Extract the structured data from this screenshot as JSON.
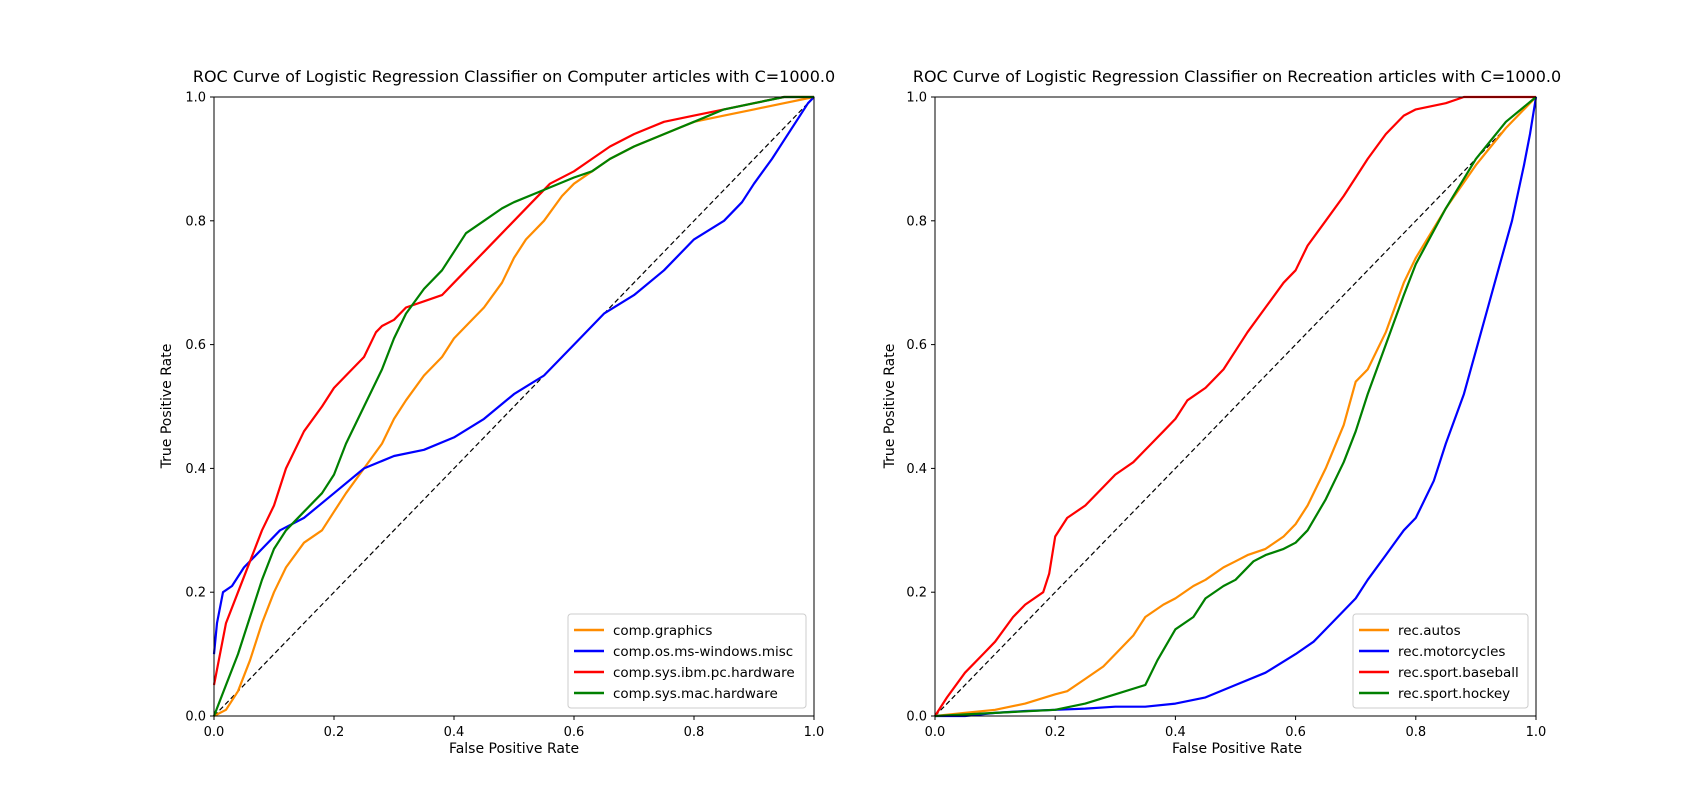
{
  "chart_data": [
    {
      "type": "line",
      "title": "ROC Curve of Logistic Regression Classifier on Computer articles with C=1000.0",
      "xlabel": "False Positive Rate",
      "ylabel": "True Positive Rate",
      "xlim": [
        0,
        1
      ],
      "ylim": [
        0,
        1
      ],
      "xticks": [
        "0.0",
        "0.2",
        "0.4",
        "0.6",
        "0.8",
        "1.0"
      ],
      "yticks": [
        "0.0",
        "0.2",
        "0.4",
        "0.6",
        "0.8",
        "1.0"
      ],
      "grid": false,
      "legend_position": "lower-right",
      "diagonal": {
        "style": "dashed",
        "color": "#000000",
        "x": [
          0,
          1
        ],
        "y": [
          0,
          1
        ]
      },
      "series": [
        {
          "name": "comp.graphics",
          "color": "#ff8c00",
          "x": [
            0,
            0.02,
            0.04,
            0.06,
            0.08,
            0.1,
            0.12,
            0.15,
            0.18,
            0.2,
            0.22,
            0.25,
            0.28,
            0.3,
            0.32,
            0.35,
            0.38,
            0.4,
            0.42,
            0.45,
            0.48,
            0.5,
            0.52,
            0.55,
            0.58,
            0.6,
            0.63,
            0.66,
            0.7,
            0.75,
            0.8,
            0.85,
            0.9,
            0.95,
            1.0
          ],
          "y": [
            0,
            0.01,
            0.04,
            0.09,
            0.15,
            0.2,
            0.24,
            0.28,
            0.3,
            0.33,
            0.36,
            0.4,
            0.44,
            0.48,
            0.51,
            0.55,
            0.58,
            0.61,
            0.63,
            0.66,
            0.7,
            0.74,
            0.77,
            0.8,
            0.84,
            0.86,
            0.88,
            0.9,
            0.92,
            0.94,
            0.96,
            0.97,
            0.98,
            0.99,
            1.0
          ]
        },
        {
          "name": "comp.os.ms-windows.misc",
          "color": "#0000ff",
          "x": [
            0,
            0.005,
            0.015,
            0.03,
            0.05,
            0.08,
            0.11,
            0.15,
            0.2,
            0.25,
            0.3,
            0.35,
            0.4,
            0.45,
            0.5,
            0.55,
            0.6,
            0.65,
            0.7,
            0.75,
            0.8,
            0.85,
            0.88,
            0.9,
            0.93,
            0.95,
            0.97,
            0.99,
            1.0
          ],
          "y": [
            0.1,
            0.15,
            0.2,
            0.21,
            0.24,
            0.27,
            0.3,
            0.32,
            0.36,
            0.4,
            0.42,
            0.43,
            0.45,
            0.48,
            0.52,
            0.55,
            0.6,
            0.65,
            0.68,
            0.72,
            0.77,
            0.8,
            0.83,
            0.86,
            0.9,
            0.93,
            0.96,
            0.99,
            1.0
          ]
        },
        {
          "name": "comp.sys.ibm.pc.hardware",
          "color": "#ff0000",
          "x": [
            0,
            0.01,
            0.02,
            0.04,
            0.06,
            0.08,
            0.1,
            0.12,
            0.15,
            0.18,
            0.2,
            0.22,
            0.25,
            0.27,
            0.28,
            0.3,
            0.32,
            0.35,
            0.38,
            0.4,
            0.42,
            0.45,
            0.48,
            0.5,
            0.53,
            0.56,
            0.6,
            0.63,
            0.66,
            0.7,
            0.75,
            0.8,
            0.85,
            0.9,
            0.95,
            1.0
          ],
          "y": [
            0.05,
            0.1,
            0.15,
            0.2,
            0.25,
            0.3,
            0.34,
            0.4,
            0.46,
            0.5,
            0.53,
            0.55,
            0.58,
            0.62,
            0.63,
            0.64,
            0.66,
            0.67,
            0.68,
            0.7,
            0.72,
            0.75,
            0.78,
            0.8,
            0.83,
            0.86,
            0.88,
            0.9,
            0.92,
            0.94,
            0.96,
            0.97,
            0.98,
            0.99,
            1.0,
            1.0
          ]
        },
        {
          "name": "comp.sys.mac.hardware",
          "color": "#008000",
          "x": [
            0,
            0.02,
            0.04,
            0.06,
            0.08,
            0.1,
            0.12,
            0.15,
            0.18,
            0.2,
            0.22,
            0.25,
            0.28,
            0.3,
            0.32,
            0.35,
            0.38,
            0.4,
            0.42,
            0.45,
            0.48,
            0.5,
            0.55,
            0.6,
            0.63,
            0.66,
            0.7,
            0.75,
            0.8,
            0.85,
            0.9,
            0.95,
            1.0
          ],
          "y": [
            0,
            0.05,
            0.1,
            0.16,
            0.22,
            0.27,
            0.3,
            0.33,
            0.36,
            0.39,
            0.44,
            0.5,
            0.56,
            0.61,
            0.65,
            0.69,
            0.72,
            0.75,
            0.78,
            0.8,
            0.82,
            0.83,
            0.85,
            0.87,
            0.88,
            0.9,
            0.92,
            0.94,
            0.96,
            0.98,
            0.99,
            1.0,
            1.0
          ]
        }
      ]
    },
    {
      "type": "line",
      "title": "ROC Curve of Logistic Regression Classifier on Recreation articles with C=1000.0",
      "xlabel": "False Positive Rate",
      "ylabel": "True Positive Rate",
      "xlim": [
        0,
        1
      ],
      "ylim": [
        0,
        1
      ],
      "xticks": [
        "0.0",
        "0.2",
        "0.4",
        "0.6",
        "0.8",
        "1.0"
      ],
      "yticks": [
        "0.0",
        "0.2",
        "0.4",
        "0.6",
        "0.8",
        "1.0"
      ],
      "grid": false,
      "legend_position": "lower-right",
      "diagonal": {
        "style": "dashed",
        "color": "#000000",
        "x": [
          0,
          1
        ],
        "y": [
          0,
          1
        ]
      },
      "series": [
        {
          "name": "rec.autos",
          "color": "#ff8c00",
          "x": [
            0,
            0.05,
            0.1,
            0.15,
            0.2,
            0.22,
            0.25,
            0.28,
            0.3,
            0.33,
            0.35,
            0.38,
            0.4,
            0.43,
            0.45,
            0.48,
            0.5,
            0.52,
            0.55,
            0.58,
            0.6,
            0.62,
            0.65,
            0.68,
            0.7,
            0.72,
            0.75,
            0.78,
            0.8,
            0.85,
            0.9,
            0.95,
            1.0
          ],
          "y": [
            0,
            0.005,
            0.01,
            0.02,
            0.035,
            0.04,
            0.06,
            0.08,
            0.1,
            0.13,
            0.16,
            0.18,
            0.19,
            0.21,
            0.22,
            0.24,
            0.25,
            0.26,
            0.27,
            0.29,
            0.31,
            0.34,
            0.4,
            0.47,
            0.54,
            0.56,
            0.62,
            0.7,
            0.74,
            0.82,
            0.89,
            0.95,
            1.0
          ]
        },
        {
          "name": "rec.motorcycles",
          "color": "#0000ff",
          "x": [
            0,
            0.05,
            0.1,
            0.15,
            0.2,
            0.25,
            0.3,
            0.35,
            0.4,
            0.45,
            0.5,
            0.55,
            0.6,
            0.63,
            0.66,
            0.7,
            0.72,
            0.75,
            0.78,
            0.8,
            0.83,
            0.85,
            0.88,
            0.9,
            0.92,
            0.94,
            0.96,
            0.98,
            0.99,
            1.0
          ],
          "y": [
            0,
            0.0,
            0.005,
            0.008,
            0.01,
            0.012,
            0.015,
            0.015,
            0.02,
            0.03,
            0.05,
            0.07,
            0.1,
            0.12,
            0.15,
            0.19,
            0.22,
            0.26,
            0.3,
            0.32,
            0.38,
            0.44,
            0.52,
            0.59,
            0.66,
            0.73,
            0.8,
            0.89,
            0.94,
            1.0
          ]
        },
        {
          "name": "rec.sport.baseball",
          "color": "#ff0000",
          "x": [
            0,
            0.02,
            0.05,
            0.08,
            0.1,
            0.13,
            0.15,
            0.18,
            0.19,
            0.2,
            0.22,
            0.25,
            0.28,
            0.3,
            0.33,
            0.36,
            0.38,
            0.4,
            0.42,
            0.45,
            0.48,
            0.5,
            0.52,
            0.55,
            0.58,
            0.6,
            0.62,
            0.65,
            0.68,
            0.7,
            0.72,
            0.75,
            0.78,
            0.8,
            0.85,
            0.88,
            0.9,
            1.0
          ],
          "y": [
            0,
            0.03,
            0.07,
            0.1,
            0.12,
            0.16,
            0.18,
            0.2,
            0.23,
            0.29,
            0.32,
            0.34,
            0.37,
            0.39,
            0.41,
            0.44,
            0.46,
            0.48,
            0.51,
            0.53,
            0.56,
            0.59,
            0.62,
            0.66,
            0.7,
            0.72,
            0.76,
            0.8,
            0.84,
            0.87,
            0.9,
            0.94,
            0.97,
            0.98,
            0.99,
            1.0,
            1.0,
            1.0
          ]
        },
        {
          "name": "rec.sport.hockey",
          "color": "#008000",
          "x": [
            0,
            0.1,
            0.2,
            0.25,
            0.3,
            0.35,
            0.37,
            0.4,
            0.43,
            0.45,
            0.48,
            0.5,
            0.53,
            0.55,
            0.58,
            0.6,
            0.62,
            0.65,
            0.68,
            0.7,
            0.72,
            0.75,
            0.78,
            0.8,
            0.85,
            0.9,
            0.95,
            1.0
          ],
          "y": [
            0,
            0.005,
            0.01,
            0.02,
            0.035,
            0.05,
            0.09,
            0.14,
            0.16,
            0.19,
            0.21,
            0.22,
            0.25,
            0.26,
            0.27,
            0.28,
            0.3,
            0.35,
            0.41,
            0.46,
            0.52,
            0.6,
            0.68,
            0.73,
            0.82,
            0.9,
            0.96,
            1.0
          ]
        }
      ]
    }
  ]
}
